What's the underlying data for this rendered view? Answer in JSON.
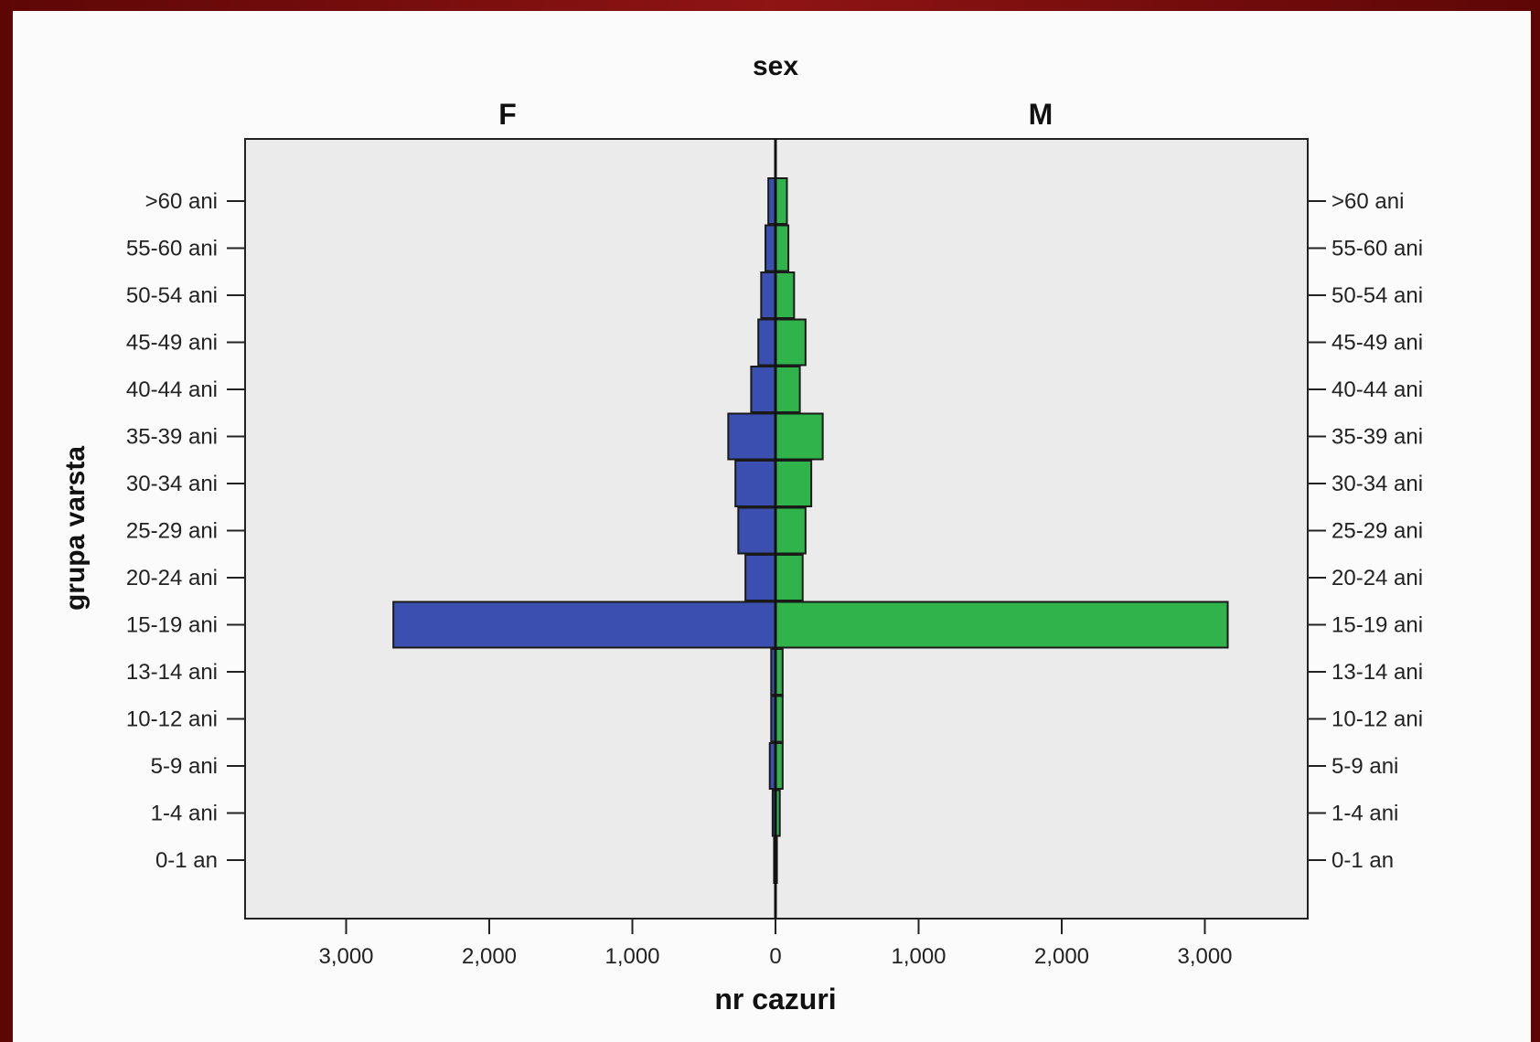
{
  "chart_data": {
    "type": "bar",
    "orientation": "population-pyramid",
    "title": "sex",
    "panels": [
      "F",
      "M"
    ],
    "ylabel": "grupa varsta",
    "xlabel": "nr cazuri",
    "x_ticks": [
      "3,000",
      "2,000",
      "1,000",
      "0",
      "1,000",
      "2,000",
      "3,000"
    ],
    "xlim": [
      -3700,
      3700
    ],
    "categories": [
      ">60 ani",
      "55-60 ani",
      "50-54 ani",
      "45-49 ani",
      "40-44 ani",
      "35-39 ani",
      "30-34 ani",
      "25-29 ani",
      "20-24 ani",
      "15-19 ani",
      "13-14 ani",
      "10-12 ani",
      "5-9 ani",
      "1-4 ani",
      "0-1 an"
    ],
    "series": [
      {
        "name": "F",
        "color": "#3a4fb0",
        "values": [
          50,
          70,
          100,
          120,
          170,
          330,
          280,
          260,
          210,
          2670,
          30,
          30,
          40,
          20,
          10
        ]
      },
      {
        "name": "M",
        "color": "#2fb34a",
        "values": [
          80,
          90,
          130,
          210,
          170,
          330,
          250,
          210,
          190,
          3160,
          50,
          50,
          50,
          30,
          10
        ]
      }
    ],
    "grid": false,
    "legend": "none"
  }
}
